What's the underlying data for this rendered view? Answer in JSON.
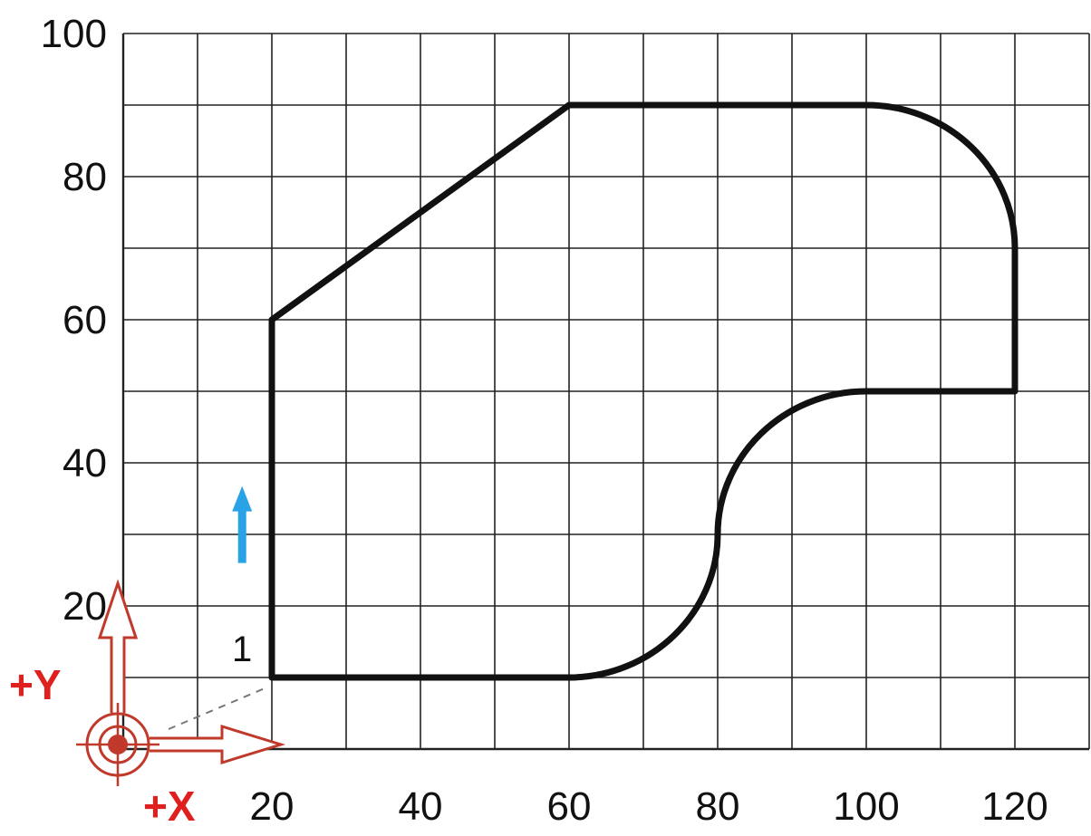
{
  "chart_data": {
    "type": "diagram",
    "xlim": [
      0,
      130
    ],
    "ylim": [
      0,
      100
    ],
    "grid_step": 10,
    "x_tick_labels": [
      "20",
      "40",
      "60",
      "80",
      "100",
      "120"
    ],
    "x_tick_values": [
      20,
      40,
      60,
      80,
      100,
      120
    ],
    "y_tick_labels": [
      "20",
      "40",
      "60",
      "80",
      "100"
    ],
    "y_tick_values": [
      20,
      40,
      60,
      80,
      100
    ],
    "contour_vertices": [
      [
        20,
        10
      ],
      [
        60,
        10
      ],
      [
        80,
        30
      ],
      [
        100,
        50
      ],
      [
        120,
        50
      ],
      [
        120,
        70
      ],
      [
        100,
        90
      ],
      [
        60,
        90
      ],
      [
        20,
        60
      ],
      [
        20,
        10
      ]
    ],
    "contour_segments": [
      {
        "type": "line",
        "from": [
          20,
          10
        ],
        "to": [
          60,
          10
        ]
      },
      {
        "type": "curve",
        "from": [
          60,
          10
        ],
        "to": [
          80,
          30
        ]
      },
      {
        "type": "curve",
        "from": [
          80,
          30
        ],
        "to": [
          100,
          50
        ]
      },
      {
        "type": "line",
        "from": [
          100,
          50
        ],
        "to": [
          120,
          50
        ]
      },
      {
        "type": "line",
        "from": [
          120,
          50
        ],
        "to": [
          120,
          70
        ]
      },
      {
        "type": "arc",
        "from": [
          120,
          70
        ],
        "to": [
          100,
          90
        ]
      },
      {
        "type": "line",
        "from": [
          100,
          90
        ],
        "to": [
          60,
          90
        ]
      },
      {
        "type": "line",
        "from": [
          60,
          90
        ],
        "to": [
          20,
          60
        ]
      },
      {
        "type": "line",
        "from": [
          20,
          60
        ],
        "to": [
          20,
          10
        ]
      }
    ],
    "start_point": {
      "label": "1",
      "x": 20,
      "y": 10
    },
    "direction_arrow": {
      "x": 16,
      "y_from": 26,
      "y_to": 36
    },
    "origin": {
      "x": 0,
      "y": 0
    },
    "x_axis_label": "+X",
    "y_axis_label": "+Y"
  },
  "colors": {
    "contour": "#111111",
    "grid": "#222222",
    "axis_symbol": "#c0392b",
    "axis_label": "#e0201f",
    "direction_arrow": "#29a3e6"
  }
}
